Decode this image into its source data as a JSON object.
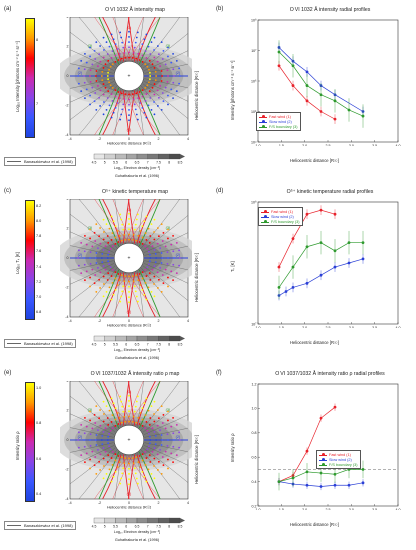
{
  "panel_labels": [
    "(a)",
    "(b)",
    "(c)",
    "(d)",
    "(e)",
    "(f)"
  ],
  "rows": [
    {
      "map_title": "O VI 1032 Å intensity map",
      "prof_title": "O VI 1032 Å intensity radial profiles",
      "cb_label": "Log₁₀ Intensity [photons cm⁻² s⁻¹ sr⁻¹]",
      "cb_ticks": [
        "8",
        "7"
      ],
      "prof_ylabel": "Intensity [photons cm⁻² s⁻¹ sr⁻¹]",
      "prof_yticks": [
        "10⁸",
        "10⁷",
        "10⁶",
        "10⁵",
        "10⁴"
      ]
    },
    {
      "map_title": "O⁵⁺ kinetic temperature map",
      "prof_title": "O⁵⁺ kinetic temperature radial profiles",
      "cb_label": "Log₁₀ Tₖ [K]",
      "cb_ticks": [
        "8.2",
        "8.0",
        "7.8",
        "7.6",
        "7.4",
        "7.2",
        "7.0",
        "6.8"
      ],
      "prof_ylabel": "Tₖ [K]",
      "prof_yticks": [
        "10⁸",
        "10⁷"
      ]
    },
    {
      "map_title": "O VI 1037/1032 Å intensity ratio ρ map",
      "prof_title": "O VI 1037/1032 Å intensity ratio ρ radial profiles",
      "cb_label": "Intensity ratio ρ",
      "cb_ticks": [
        "1.0",
        "0.8",
        "0.6",
        "0.4"
      ],
      "prof_ylabel": "Intensity ratio ρ",
      "prof_yticks": [
        "1.2",
        "1.0",
        "0.8",
        "0.6",
        "0.4",
        "0.2"
      ]
    }
  ],
  "map_axes": {
    "xlabel": "Heliocentric distance [R☉]",
    "ylabel": "Heliocentric distance [R☉]",
    "ticks": [
      "-4",
      "-2",
      "0",
      "2",
      "4"
    ]
  },
  "prof_axes": {
    "xlabel": "Heliocentric distance [R☉]",
    "xticks": [
      "1.0",
      "1.5",
      "2.0",
      "2.5",
      "3.0",
      "3.5",
      "4.0"
    ]
  },
  "region_labels": [
    "(1)",
    "(2)",
    "(3)"
  ],
  "density_legend": {
    "line_label": "Banaszkiewicz et al. (1998)",
    "cb_label": "Log₁₀ Electron density [cm⁻³]",
    "cb_ticks": [
      "4.5",
      "5",
      "5.5",
      "6",
      "6.5",
      "7",
      "7.5",
      "8",
      "8.5"
    ],
    "source": "Guhathakurta et al. (1996)"
  },
  "legend": {
    "items": [
      "Fast wind (1)",
      "Slow wind (2)",
      "F/S boundary (3)"
    ],
    "colors": [
      "#e8222b",
      "#2a3fd6",
      "#2e9a2e"
    ]
  },
  "chart_data": [
    {
      "type": "scatter",
      "panel": "(b)",
      "title": "O VI 1032 Å intensity radial profiles",
      "xlabel": "Heliocentric distance [R☉]",
      "ylabel": "Intensity [photons cm⁻² s⁻¹ sr⁻¹]",
      "xlim": [
        1.0,
        4.0
      ],
      "ylim": [
        4,
        8
      ],
      "ylog": true,
      "series": [
        {
          "name": "Fast wind (1)",
          "x": [
            1.45,
            1.75,
            2.05,
            2.35,
            2.65
          ],
          "y": [
            6.5,
            5.85,
            5.35,
            5.0,
            4.75
          ]
        },
        {
          "name": "Slow wind (2)",
          "x": [
            1.45,
            1.75,
            2.05,
            2.35,
            2.65,
            3.25
          ],
          "y": [
            7.1,
            6.65,
            6.3,
            5.85,
            5.55,
            5.0
          ]
        },
        {
          "name": "F/S boundary (3)",
          "x": [
            1.45,
            1.75,
            2.05,
            2.35,
            2.65,
            2.95,
            3.25
          ],
          "y": [
            6.95,
            6.5,
            5.85,
            5.55,
            5.35,
            5.05,
            4.85
          ]
        }
      ]
    },
    {
      "type": "scatter",
      "panel": "(d)",
      "title": "O⁵⁺ kinetic temperature radial profiles",
      "xlabel": "Heliocentric distance [R☉]",
      "ylabel": "Tₖ [K]",
      "xlim": [
        1.0,
        4.0
      ],
      "ylim": [
        6.5,
        8.0
      ],
      "ylog": true,
      "series": [
        {
          "name": "Fast wind (1)",
          "x": [
            1.45,
            1.75,
            2.05,
            2.35,
            2.65
          ],
          "y": [
            7.2,
            7.55,
            7.85,
            7.9,
            7.85
          ]
        },
        {
          "name": "Slow wind (2)",
          "x": [
            1.45,
            1.6,
            1.75,
            2.05,
            2.35,
            2.65,
            2.95,
            3.25
          ],
          "y": [
            6.85,
            6.9,
            6.95,
            7.0,
            7.1,
            7.2,
            7.25,
            7.3
          ]
        },
        {
          "name": "F/S boundary (3)",
          "x": [
            1.45,
            1.75,
            2.05,
            2.35,
            2.65,
            2.95,
            3.25
          ],
          "y": [
            6.95,
            7.2,
            7.45,
            7.5,
            7.4,
            7.5,
            7.5
          ]
        }
      ]
    },
    {
      "type": "scatter",
      "panel": "(f)",
      "title": "O VI 1037/1032 Å intensity ratio ρ radial profiles",
      "xlabel": "Heliocentric distance [R☉]",
      "ylabel": "Intensity ratio ρ",
      "xlim": [
        1.0,
        4.0
      ],
      "ylim": [
        0.2,
        1.2
      ],
      "hline": 0.5,
      "series": [
        {
          "name": "Fast wind (1)",
          "x": [
            1.45,
            1.75,
            2.05,
            2.35,
            2.65
          ],
          "y": [
            0.4,
            0.45,
            0.65,
            0.92,
            1.01
          ]
        },
        {
          "name": "Slow wind (2)",
          "x": [
            1.45,
            1.75,
            2.05,
            2.35,
            2.65,
            2.95,
            3.25
          ],
          "y": [
            0.4,
            0.38,
            0.37,
            0.36,
            0.37,
            0.37,
            0.39
          ]
        },
        {
          "name": "F/S boundary (3)",
          "x": [
            1.45,
            1.75,
            2.05,
            2.35,
            2.65,
            2.95,
            3.25
          ],
          "y": [
            0.4,
            0.43,
            0.48,
            0.47,
            0.46,
            0.5,
            0.5
          ]
        }
      ]
    }
  ]
}
